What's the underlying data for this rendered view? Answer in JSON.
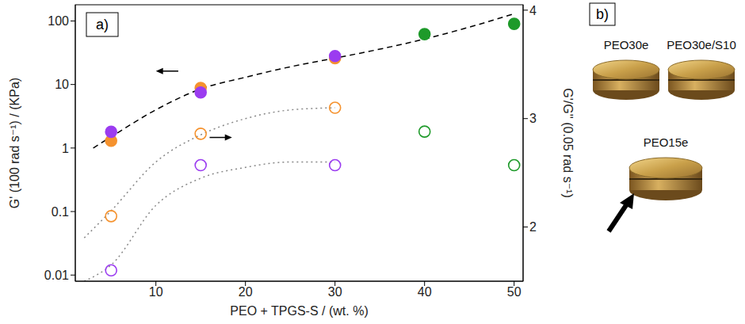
{
  "chart_data": {
    "type": "scatter",
    "annotations": [
      "a)"
    ],
    "x_label": "PEO + TPGS-S / (wt. %)",
    "y_label": "G' (100 rad s⁻¹) / (KPa)",
    "y2_label": "G'/G'' (0.05 rad s⁻¹)",
    "xlim": [
      1,
      51
    ],
    "xticks": [
      10,
      20,
      30,
      40,
      50
    ],
    "ylim": [
      0.008,
      180
    ],
    "yticks": [
      0.01,
      0.1,
      1,
      10,
      100
    ],
    "y2lim": [
      1.5,
      4.05
    ],
    "y2ticks": [
      2,
      3,
      4
    ],
    "log": "y",
    "grid": false,
    "series": [
      {
        "type": "line",
        "color": "#000000",
        "line_style": "dashed",
        "marker": "none",
        "x": [
          3,
          5,
          10,
          15,
          20,
          25,
          30,
          35,
          40,
          45,
          50
        ],
        "values": [
          1.0,
          1.5,
          4,
          8.5,
          13,
          19,
          26,
          36,
          52,
          80,
          130
        ]
      },
      {
        "type": "line",
        "color": "#888888",
        "line_style": "dotted",
        "marker": "none",
        "axis": "y2",
        "x": [
          2,
          5,
          10,
          15,
          20,
          25,
          30
        ],
        "values": [
          1.9,
          2.15,
          2.6,
          2.85,
          3.0,
          3.08,
          3.1
        ]
      },
      {
        "type": "line",
        "color": "#888888",
        "line_style": "dotted",
        "marker": "none",
        "axis": "y2",
        "x": [
          2,
          5,
          10,
          15,
          20,
          25,
          30
        ],
        "values": [
          1.5,
          1.65,
          2.2,
          2.45,
          2.55,
          2.6,
          2.6
        ]
      },
      {
        "type": "scatter",
        "color": "#f5922e",
        "marker": "filled_circle",
        "x": [
          5,
          15,
          30
        ],
        "values": [
          1.3,
          8.8,
          26
        ]
      },
      {
        "type": "scatter",
        "color": "#9b3cf0",
        "marker": "filled_circle",
        "x": [
          5,
          15,
          30
        ],
        "values": [
          1.8,
          7.5,
          28
        ]
      },
      {
        "type": "scatter",
        "color": "#1e9a2a",
        "marker": "filled_circle",
        "x": [
          40,
          50
        ],
        "values": [
          62,
          90
        ]
      },
      {
        "type": "scatter",
        "color": "#f5922e",
        "marker": "open_circle",
        "axis": "y2",
        "x": [
          5,
          15,
          30
        ],
        "values": [
          2.1,
          2.86,
          3.1
        ]
      },
      {
        "type": "scatter",
        "color": "#9b3cf0",
        "marker": "open_circle",
        "axis": "y2",
        "x": [
          5,
          15,
          30
        ],
        "values": [
          1.6,
          2.57,
          2.57
        ]
      },
      {
        "type": "scatter",
        "color": "#1e9a2a",
        "marker": "open_circle",
        "axis": "y2",
        "x": [
          40,
          50
        ],
        "values": [
          2.88,
          2.57
        ]
      }
    ]
  },
  "photo": {
    "label": "b)",
    "samples": [
      "PEO30e",
      "PEO30e/S10",
      "PEO15e"
    ]
  }
}
